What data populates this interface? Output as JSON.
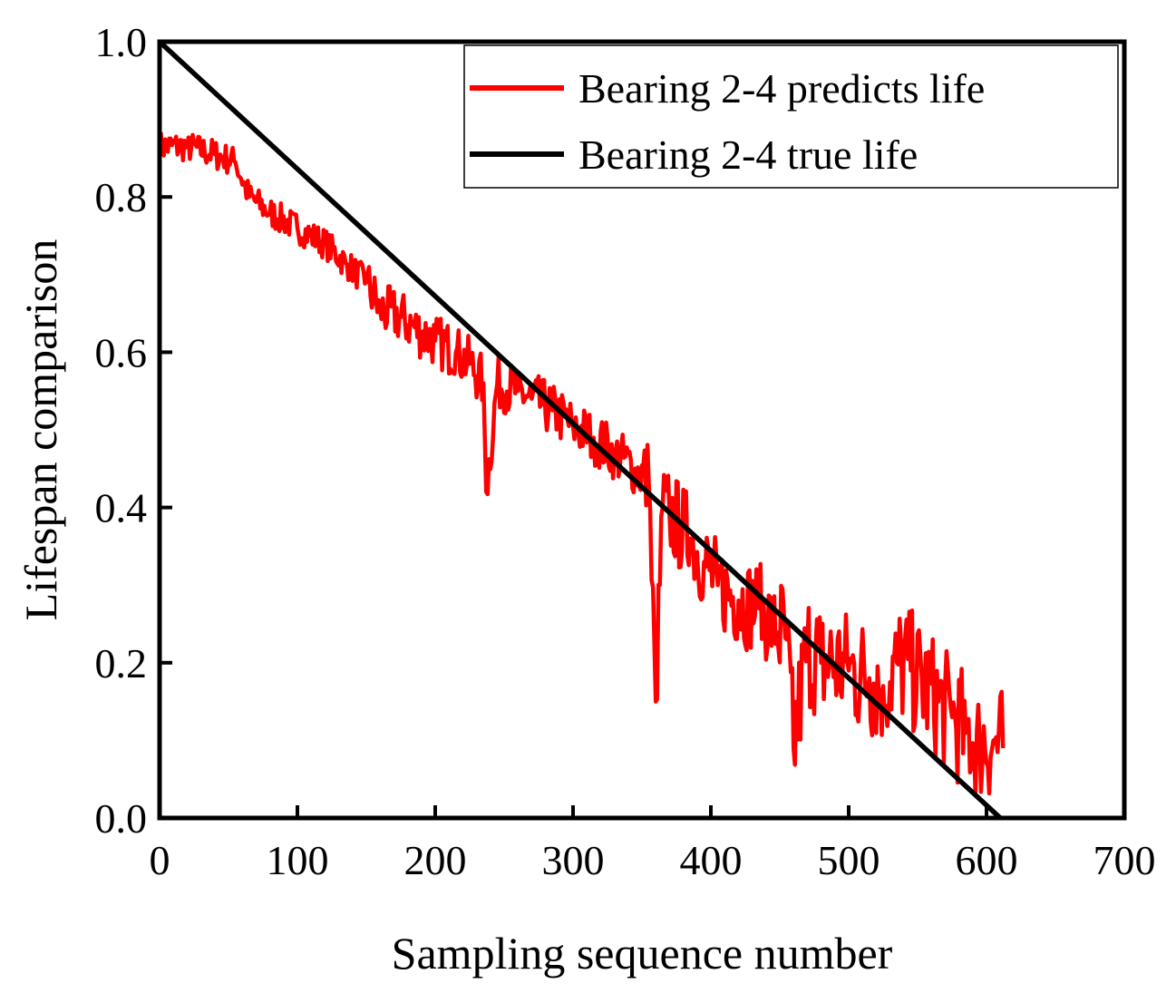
{
  "chart_data": {
    "type": "line",
    "title": "",
    "xlabel": "Sampling sequence number",
    "ylabel": "Lifespan comparison",
    "xlim": [
      0,
      700
    ],
    "ylim": [
      0.0,
      1.0
    ],
    "xticks": [
      0,
      100,
      200,
      300,
      400,
      500,
      600,
      700
    ],
    "yticks": [
      0.0,
      0.2,
      0.4,
      0.6,
      0.8,
      1.0
    ],
    "xtick_labels": [
      "0",
      "100",
      "200",
      "300",
      "400",
      "500",
      "600",
      "700"
    ],
    "ytick_labels": [
      "0.0",
      "0.2",
      "0.4",
      "0.6",
      "0.8",
      "1.0"
    ],
    "grid": false,
    "legend_position": "top-right",
    "series": [
      {
        "name": "Bearing 2-4 predicts life",
        "color": "#ff0000",
        "x": [
          0,
          20,
          40,
          55,
          65,
          80,
          100,
          120,
          135,
          150,
          160,
          175,
          190,
          200,
          215,
          225,
          235,
          237,
          245,
          260,
          270,
          285,
          300,
          315,
          330,
          345,
          355,
          360,
          365,
          370,
          385,
          395,
          405,
          420,
          435,
          445,
          455,
          460,
          470,
          480,
          490,
          500,
          515,
          525,
          535,
          545,
          555,
          565,
          575,
          585,
          595,
          605,
          612
        ],
        "y": [
          0.865,
          0.865,
          0.855,
          0.845,
          0.8,
          0.78,
          0.76,
          0.74,
          0.715,
          0.69,
          0.655,
          0.645,
          0.625,
          0.615,
          0.6,
          0.585,
          0.56,
          0.42,
          0.56,
          0.55,
          0.54,
          0.525,
          0.505,
          0.49,
          0.47,
          0.45,
          0.43,
          0.15,
          0.4,
          0.39,
          0.36,
          0.33,
          0.3,
          0.28,
          0.27,
          0.25,
          0.23,
          0.09,
          0.22,
          0.2,
          0.2,
          0.19,
          0.18,
          0.17,
          0.2,
          0.19,
          0.17,
          0.15,
          0.13,
          0.11,
          0.1,
          0.1,
          0.09
        ]
      },
      {
        "name": "Bearing 2-4 true life",
        "color": "#000000",
        "x": [
          0,
          610
        ],
        "y": [
          1.0,
          0.0
        ]
      }
    ]
  }
}
